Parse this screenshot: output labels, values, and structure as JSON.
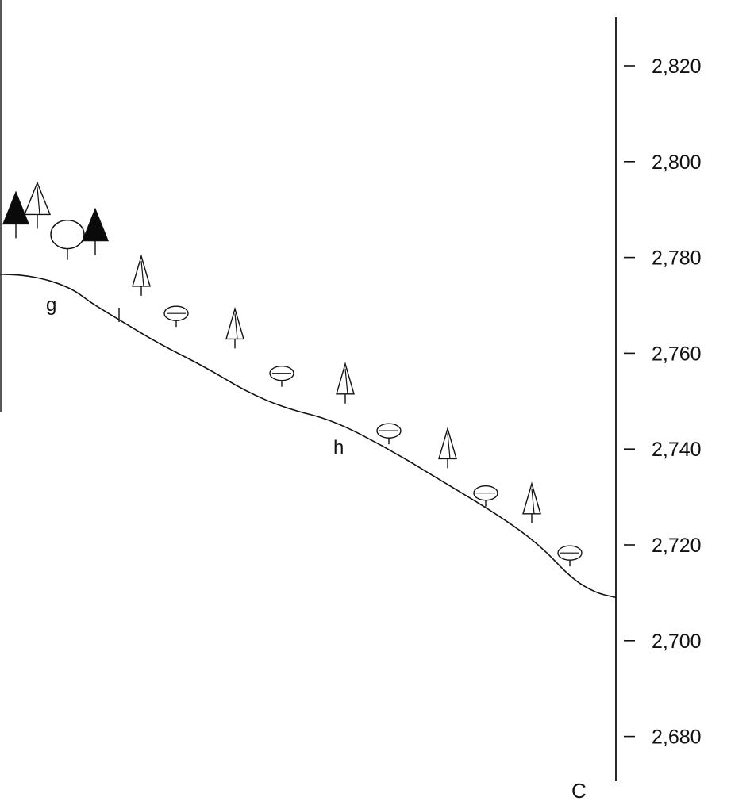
{
  "colors": {
    "ink": "#111111",
    "paper": "#ffffff",
    "dark_conifer": "#0a0a0a",
    "light_tree": "#ffffff"
  },
  "axis": {
    "side": "right",
    "ylim": [
      2670,
      2832
    ],
    "ticks": [
      {
        "value": 2820,
        "label": "2,820"
      },
      {
        "value": 2800,
        "label": "2,800"
      },
      {
        "value": 2780,
        "label": "2,780"
      },
      {
        "value": 2760,
        "label": "2,760"
      },
      {
        "value": 2740,
        "label": "2,740"
      },
      {
        "value": 2720,
        "label": "2,720"
      },
      {
        "value": 2700,
        "label": "2,700"
      },
      {
        "value": 2680,
        "label": "2,680"
      }
    ]
  },
  "labels": {
    "point_g": "g",
    "point_h": "h",
    "corner": "C"
  },
  "profile": {
    "elevations": [
      2776.5,
      2776.3,
      2775.5,
      2774.5,
      2773,
      2770.5,
      2767,
      2762,
      2757,
      2752,
      2748.5,
      2746,
      2740,
      2733,
      2726,
      2720,
      2713,
      2710,
      2709
    ]
  },
  "vegetation": [
    {
      "kind": "dark-conifer",
      "elevation": 2784,
      "size": "large"
    },
    {
      "kind": "light-conifer",
      "elevation": 2786,
      "size": "large"
    },
    {
      "kind": "round-tree",
      "elevation": 2779.5,
      "size": "large"
    },
    {
      "kind": "dark-conifer",
      "elevation": 2780.5,
      "size": "large"
    },
    {
      "kind": "light-conifer",
      "elevation": 2772,
      "size": "small"
    },
    {
      "kind": "shrub",
      "elevation": 2765.5,
      "size": "small"
    },
    {
      "kind": "light-conifer",
      "elevation": 2761,
      "size": "small"
    },
    {
      "kind": "shrub",
      "elevation": 2753,
      "size": "small"
    },
    {
      "kind": "light-conifer",
      "elevation": 2749.5,
      "size": "small"
    },
    {
      "kind": "shrub",
      "elevation": 2741,
      "size": "small"
    },
    {
      "kind": "light-conifer",
      "elevation": 2736,
      "size": "small"
    },
    {
      "kind": "shrub",
      "elevation": 2728,
      "size": "small"
    },
    {
      "kind": "light-conifer",
      "elevation": 2724.5,
      "size": "small"
    },
    {
      "kind": "shrub",
      "elevation": 2715.5,
      "size": "small"
    }
  ]
}
